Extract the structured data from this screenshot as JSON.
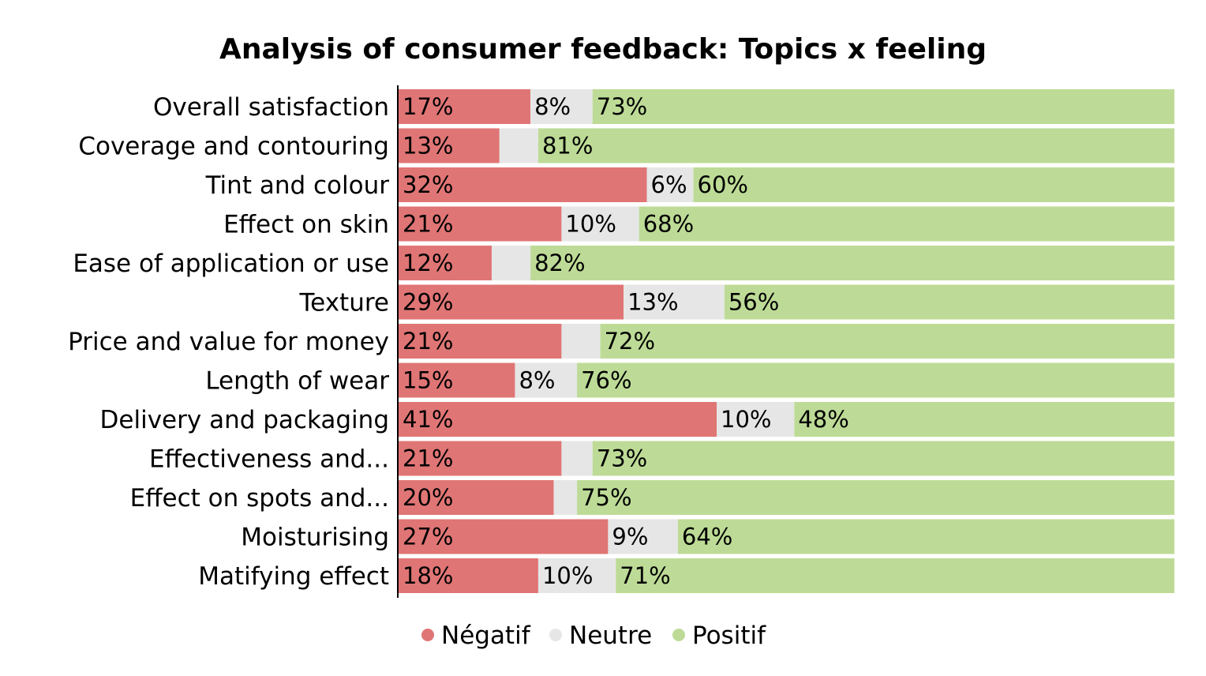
{
  "chart_data": {
    "type": "bar",
    "orientation": "horizontal",
    "stacked": true,
    "normalized": true,
    "title": "Analysis of consumer feedback: Topics x feeling",
    "xlabel": "",
    "ylabel": "",
    "xlim": [
      0,
      100
    ],
    "grid": false,
    "legend_position": "bottom",
    "categories": [
      "Overall satisfaction",
      "Coverage and contouring",
      "Tint and colour",
      "Effect on skin",
      "Ease of application or use",
      "Texture",
      "Price and value for money",
      "Length of wear",
      "Delivery and packaging",
      "Effectiveness and...",
      "Effect on spots and...",
      "Moisturising",
      "Matifying effect"
    ],
    "series": [
      {
        "name": "Négatif",
        "color": "#e07575",
        "values": [
          17,
          13,
          32,
          21,
          12,
          29,
          21,
          15,
          41,
          21,
          20,
          27,
          18
        ],
        "labels": [
          "17%",
          "13%",
          "32%",
          "21%",
          "12%",
          "29%",
          "21%",
          "15%",
          "41%",
          "21%",
          "20%",
          "27%",
          "18%"
        ]
      },
      {
        "name": "Neutre",
        "color": "#e6e6e6",
        "values": [
          8,
          5,
          6,
          10,
          5,
          13,
          5,
          8,
          10,
          4,
          3,
          9,
          10
        ],
        "labels": [
          "8%",
          "",
          "6%",
          "10%",
          "",
          "13%",
          "",
          "8%",
          "10%",
          "",
          "",
          "9%",
          "10%"
        ]
      },
      {
        "name": "Positif",
        "color": "#bddb96",
        "values": [
          73,
          81,
          60,
          68,
          82,
          56,
          72,
          76,
          48,
          73,
          75,
          64,
          71
        ],
        "labels": [
          "73%",
          "81%",
          "60%",
          "68%",
          "82%",
          "56%",
          "72%",
          "76%",
          "48%",
          "73%",
          "75%",
          "64%",
          "71%"
        ]
      }
    ]
  }
}
